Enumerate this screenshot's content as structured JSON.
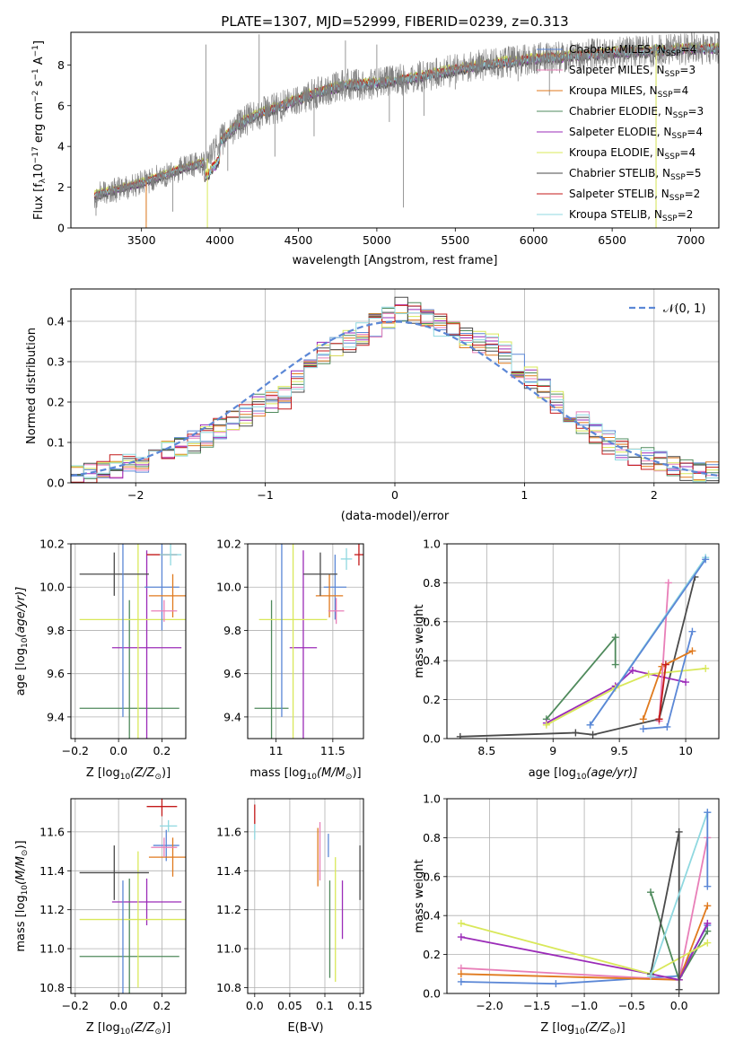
{
  "figure": {
    "title": "PLATE=1307, MJD=52999, FIBERID=0239, z=0.313"
  },
  "colors": {
    "Chabrier MILES": "#5b87d6",
    "Salpeter MILES": "#e87fb8",
    "Kroupa MILES": "#e07a1e",
    "Chabrier ELODIE": "#4f8a5c",
    "Salpeter ELODIE": "#9b2bb8",
    "Kroupa ELODIE": "#d9e85a",
    "Chabrier STELIB": "#4a4a4a",
    "Salpeter STELIB": "#c41a1a",
    "Kroupa STELIB": "#8fd8e0",
    "data": "#7f7f7f",
    "normal": "#5b87d6"
  },
  "chart_data": [
    {
      "id": "spectrum",
      "type": "line",
      "xlabel": "wavelength [Angstrom, rest frame]",
      "ylabel": "Flux [f",
      "ylabel_parts": [
        "Flux [f",
        "λ",
        "10",
        "−17",
        " erg cm",
        "−2",
        " s",
        "−1",
        " A",
        "−1",
        "]"
      ],
      "xlim": [
        3050,
        7180
      ],
      "ylim": [
        0,
        9.6
      ],
      "xticks": [
        3500,
        4000,
        4500,
        5000,
        5500,
        6000,
        6500,
        7000
      ],
      "yticks": [
        0,
        2,
        4,
        6,
        8
      ],
      "legend_position": "top-right",
      "legend": [
        {
          "model": "Chabrier MILES",
          "label": "Chabrier MILES, N",
          "sub": "SSP",
          "n": "=4"
        },
        {
          "model": "Salpeter MILES",
          "label": "Salpeter MILES, N",
          "sub": "SSP",
          "n": "=3"
        },
        {
          "model": "Kroupa MILES",
          "label": "Kroupa MILES, N",
          "sub": "SSP",
          "n": "=4"
        },
        {
          "model": "Chabrier ELODIE",
          "label": "Chabrier ELODIE, N",
          "sub": "SSP",
          "n": "=3"
        },
        {
          "model": "Salpeter ELODIE",
          "label": "Salpeter ELODIE, N",
          "sub": "SSP",
          "n": "=4"
        },
        {
          "model": "Kroupa ELODIE",
          "label": "Kroupa ELODIE, N",
          "sub": "SSP",
          "n": "=4"
        },
        {
          "model": "Chabrier STELIB",
          "label": "Chabrier STELIB, N",
          "sub": "SSP",
          "n": "=5"
        },
        {
          "model": "Salpeter STELIB",
          "label": "Salpeter STELIB, N",
          "sub": "SSP",
          "n": "=2"
        },
        {
          "model": "Kroupa STELIB",
          "label": "Kroupa STELIB, N",
          "sub": "SSP",
          "n": "=2"
        }
      ],
      "continuum": {
        "wavelength": [
          3200,
          3400,
          3500,
          3650,
          3750,
          3900,
          4000,
          4100,
          4250,
          4400,
          4600,
          4800,
          5000,
          5200,
          5400,
          5600,
          5800,
          6000,
          6200,
          6500,
          6800,
          7000
        ],
        "flux": [
          1.6,
          2.0,
          2.2,
          2.6,
          2.9,
          3.2,
          4.2,
          5.0,
          5.6,
          6.0,
          6.6,
          7.0,
          7.1,
          7.3,
          7.6,
          7.9,
          8.1,
          8.3,
          8.4,
          8.6,
          8.7,
          8.8
        ]
      },
      "model_offsets": [
        0.0,
        0.05,
        -0.05,
        0.1,
        -0.1,
        0.15,
        -0.15,
        0.08,
        -0.02
      ],
      "data_spikes": {
        "wavelength": [
          3210,
          3530,
          3700,
          3910,
          4050,
          4250,
          4350,
          4600,
          4800,
          5000,
          5080,
          5170,
          5300,
          5500,
          5900,
          6100,
          6300,
          6550,
          6780,
          6850
        ],
        "flux": [
          0.6,
          0.3,
          0.8,
          9.0,
          2.8,
          9.5,
          3.5,
          4.5,
          9.2,
          9.0,
          5.2,
          1.0,
          5.5,
          6.8,
          7.2,
          6.5,
          7.8,
          7.5,
          0.0,
          9.3
        ]
      },
      "notches": [
        {
          "model": "Kroupa ELODIE",
          "wavelength": 3920,
          "flux": 0.0
        },
        {
          "model": "Kroupa MILES",
          "wavelength": 3530,
          "flux": 0.0
        },
        {
          "model": "Kroupa ELODIE",
          "wavelength": 6780,
          "flux": 0.0
        }
      ]
    },
    {
      "id": "residuals",
      "type": "line",
      "xlabel": "(data-model)/error",
      "ylabel": "Normed distribution",
      "xlim": [
        -2.5,
        2.5
      ],
      "ylim": [
        0,
        0.48
      ],
      "xticks": [
        -2,
        -1,
        0,
        1,
        2
      ],
      "xticklabels": [
        "−2",
        "−1",
        "0",
        "1",
        "2"
      ],
      "yticks": [
        0.0,
        0.1,
        0.2,
        0.3,
        0.4
      ],
      "grid": true,
      "legend_position": "top-right",
      "legend": [
        {
          "label": "𝒩(0, 1)",
          "style": "dashed"
        }
      ],
      "normal": {
        "mean": 0,
        "sigma": 1
      },
      "histogram": {
        "bin_start": -2.5,
        "bin_width": 0.1,
        "base": [
          0.02,
          0.025,
          0.03,
          0.04,
          0.05,
          0.055,
          0.065,
          0.08,
          0.09,
          0.1,
          0.115,
          0.13,
          0.15,
          0.17,
          0.19,
          0.2,
          0.21,
          0.25,
          0.29,
          0.32,
          0.34,
          0.35,
          0.37,
          0.39,
          0.41,
          0.43,
          0.42,
          0.4,
          0.39,
          0.37,
          0.36,
          0.35,
          0.34,
          0.32,
          0.29,
          0.26,
          0.23,
          0.2,
          0.17,
          0.15,
          0.12,
          0.1,
          0.085,
          0.07,
          0.06,
          0.05,
          0.045,
          0.035,
          0.03,
          0.025
        ]
      }
    },
    {
      "id": "age_vs_Z",
      "type": "scatter",
      "xlabel": "Z [log",
      "xlabel_parts": [
        "Z [log",
        "10",
        "(Z/Z",
        "⊙",
        ")]"
      ],
      "ylabel_parts": [
        "age  [log",
        "10",
        "(age/yr)]"
      ],
      "xlim": [
        -0.22,
        0.31
      ],
      "ylim": [
        9.3,
        10.2
      ],
      "xticks": [
        -0.2,
        0.0,
        0.2
      ],
      "xticklabels": [
        "−0.2",
        "0.0",
        "0.2"
      ],
      "yticks": [
        9.4,
        9.6,
        9.8,
        10.0,
        10.2
      ],
      "grid": true,
      "points": [
        {
          "model": "Chabrier ELODIE",
          "x": 0.05,
          "y": 9.44,
          "xerr": 0.23,
          "yerr": 0.5
        },
        {
          "model": "Salpeter ELODIE",
          "x": 0.13,
          "y": 9.72,
          "xerr": 0.16,
          "yerr": 0.45
        },
        {
          "model": "Kroupa ELODIE",
          "x": 0.09,
          "y": 9.85,
          "xerr": 0.27,
          "yerr": 0.6
        },
        {
          "model": "Chabrier MILES",
          "x": 0.2,
          "y": 10.0,
          "xerr": 0.08,
          "yerr": 0.2
        },
        {
          "model": "Kroupa MILES",
          "x": 0.25,
          "y": 9.96,
          "xerr": 0.11,
          "yerr": 0.1
        },
        {
          "model": "Salpeter MILES",
          "x": 0.21,
          "y": 9.89,
          "xerr": 0.06,
          "yerr": 0.05
        },
        {
          "model": "Chabrier STELIB",
          "x": -0.02,
          "y": 10.06,
          "xerr": 0.16,
          "yerr": 0.1
        },
        {
          "model": "Salpeter STELIB",
          "x": 0.2,
          "y": 10.15,
          "xerr": 0.07,
          "yerr": 0.0
        },
        {
          "model": "Kroupa STELIB",
          "x": 0.24,
          "y": 10.15,
          "xerr": 0.05,
          "yerr": 0.05
        },
        {
          "model": "Chabrier MILES",
          "x": 0.02,
          "y": 9.8,
          "xerr": 0.0,
          "yerr": 0.4
        }
      ]
    },
    {
      "id": "age_vs_mass",
      "type": "scatter",
      "xlabel_parts": [
        "mass [log",
        "10",
        "(M/M",
        "⊙",
        ")]"
      ],
      "xlim": [
        10.75,
        11.77
      ],
      "ylim": [
        9.3,
        10.2
      ],
      "xticks": [
        11.0,
        11.5
      ],
      "yticks": [
        9.4,
        9.6,
        9.8,
        10.0,
        10.2
      ],
      "grid": true,
      "points": [
        {
          "model": "Chabrier ELODIE",
          "x": 10.96,
          "y": 9.44,
          "xerr": 0.15,
          "yerr": 0.5
        },
        {
          "model": "Salpeter ELODIE",
          "x": 11.24,
          "y": 9.72,
          "xerr": 0.12,
          "yerr": 0.45
        },
        {
          "model": "Kroupa ELODIE",
          "x": 11.15,
          "y": 9.85,
          "xerr": 0.3,
          "yerr": 0.6
        },
        {
          "model": "Chabrier MILES",
          "x": 11.05,
          "y": 9.8,
          "xerr": 0.0,
          "yerr": 0.4
        },
        {
          "model": "Chabrier MILES",
          "x": 11.52,
          "y": 10.0,
          "xerr": 0.1,
          "yerr": 0.15
        },
        {
          "model": "Kroupa MILES",
          "x": 11.47,
          "y": 9.96,
          "xerr": 0.12,
          "yerr": 0.1
        },
        {
          "model": "Salpeter MILES",
          "x": 11.53,
          "y": 9.89,
          "xerr": 0.07,
          "yerr": 0.06
        },
        {
          "model": "Chabrier STELIB",
          "x": 11.39,
          "y": 10.06,
          "xerr": 0.15,
          "yerr": 0.1
        },
        {
          "model": "Salpeter STELIB",
          "x": 11.73,
          "y": 10.15,
          "xerr": 0.04,
          "yerr": 0.05
        },
        {
          "model": "Kroupa STELIB",
          "x": 11.62,
          "y": 10.13,
          "xerr": 0.05,
          "yerr": 0.05
        }
      ]
    },
    {
      "id": "weight_vs_age",
      "type": "line",
      "xlabel_parts": [
        "age  [log",
        "10",
        "(age/yr)]"
      ],
      "ylabel": "mass weight",
      "xlim": [
        8.2,
        10.25
      ],
      "ylim": [
        0,
        1.0
      ],
      "xticks": [
        8.5,
        9.0,
        9.5,
        10.0
      ],
      "yticks": [
        0.0,
        0.2,
        0.4,
        0.6,
        0.8,
        1.0
      ],
      "grid": true,
      "series": [
        {
          "model": "Chabrier STELIB",
          "x": [
            8.3,
            9.17,
            9.3,
            9.8,
            10.07
          ],
          "y": [
            0.01,
            0.03,
            0.02,
            0.1,
            0.83
          ]
        },
        {
          "model": "Chabrier ELODIE",
          "x": [
            8.95,
            9.47,
            9.47
          ],
          "y": [
            0.1,
            0.52,
            0.38
          ]
        },
        {
          "model": "Salpeter ELODIE",
          "x": [
            8.95,
            9.47,
            9.6,
            10.0
          ],
          "y": [
            0.08,
            0.27,
            0.35,
            0.29
          ]
        },
        {
          "model": "Kroupa ELODIE",
          "x": [
            8.95,
            9.47,
            9.72,
            10.15
          ],
          "y": [
            0.07,
            0.26,
            0.33,
            0.36
          ]
        },
        {
          "model": "Chabrier MILES",
          "x": [
            9.68,
            9.86,
            10.05
          ],
          "y": [
            0.05,
            0.06,
            0.55
          ]
        },
        {
          "model": "Kroupa MILES",
          "x": [
            9.68,
            9.82,
            10.05
          ],
          "y": [
            0.1,
            0.37,
            0.45
          ]
        },
        {
          "model": "Salpeter MILES",
          "x": [
            9.8,
            9.87
          ],
          "y": [
            0.09,
            0.8
          ]
        },
        {
          "model": "Kroupa STELIB",
          "x": [
            9.28,
            10.15
          ],
          "y": [
            0.07,
            0.93
          ]
        },
        {
          "model": "Chabrier MILES",
          "x": [
            9.28,
            10.15
          ],
          "y": [
            0.07,
            0.92
          ]
        },
        {
          "model": "Salpeter STELIB",
          "x": [
            9.8,
            9.85
          ],
          "y": [
            0.1,
            0.38
          ]
        }
      ]
    },
    {
      "id": "mass_vs_Z",
      "type": "scatter",
      "xlabel_parts": [
        "Z [log",
        "10",
        "(Z/Z",
        "⊙",
        ")]"
      ],
      "ylabel_parts": [
        "mass [log",
        "10",
        "(M/M",
        "⊙",
        ")]"
      ],
      "xlim": [
        -0.22,
        0.31
      ],
      "ylim": [
        10.77,
        11.77
      ],
      "xticks": [
        -0.2,
        0.0,
        0.2
      ],
      "xticklabels": [
        "−0.2",
        "0.0",
        "0.2"
      ],
      "yticks": [
        10.8,
        11.0,
        11.2,
        11.4,
        11.6
      ],
      "grid": true,
      "points": [
        {
          "model": "Chabrier ELODIE",
          "x": 0.05,
          "y": 10.96,
          "xerr": 0.23,
          "yerr": 0.4
        },
        {
          "model": "Salpeter ELODIE",
          "x": 0.13,
          "y": 11.24,
          "xerr": 0.16,
          "yerr": 0.12
        },
        {
          "model": "Kroupa ELODIE",
          "x": 0.09,
          "y": 11.15,
          "xerr": 0.27,
          "yerr": 0.35
        },
        {
          "model": "Chabrier MILES",
          "x": 0.02,
          "y": 11.05,
          "xerr": 0.0,
          "yerr": 0.3
        },
        {
          "model": "Chabrier MILES",
          "x": 0.22,
          "y": 11.53,
          "xerr": 0.06,
          "yerr": 0.08
        },
        {
          "model": "Kroupa MILES",
          "x": 0.25,
          "y": 11.47,
          "xerr": 0.11,
          "yerr": 0.1
        },
        {
          "model": "Salpeter MILES",
          "x": 0.21,
          "y": 11.52,
          "xerr": 0.06,
          "yerr": 0.05
        },
        {
          "model": "Chabrier STELIB",
          "x": -0.02,
          "y": 11.39,
          "xerr": 0.16,
          "yerr": 0.14
        },
        {
          "model": "Salpeter STELIB",
          "x": 0.2,
          "y": 11.73,
          "xerr": 0.07,
          "yerr": 0.05
        },
        {
          "model": "Kroupa STELIB",
          "x": 0.23,
          "y": 11.63,
          "xerr": 0.04,
          "yerr": 0.03
        }
      ]
    },
    {
      "id": "mass_vs_ebv",
      "type": "scatter",
      "xlabel": "E(B-V)",
      "xlim": [
        -0.01,
        0.155
      ],
      "ylim": [
        10.77,
        11.77
      ],
      "xticks": [
        0.0,
        0.05,
        0.1,
        0.15
      ],
      "xticklabels": [
        "0.0",
        "0.05",
        "0.1",
        "0.15"
      ],
      "yticks": [
        10.8,
        11.0,
        11.2,
        11.4,
        11.6
      ],
      "grid": true,
      "points": [
        {
          "model": "Salpeter STELIB",
          "x": 0.0,
          "y": 11.69,
          "yerr": 0.05
        },
        {
          "model": "Kroupa STELIB",
          "x": 0.0,
          "y": 11.6,
          "yerr": 0.04
        },
        {
          "model": "Kroupa MILES",
          "x": 0.09,
          "y": 11.47,
          "yerr": 0.15
        },
        {
          "model": "Salpeter MILES",
          "x": 0.093,
          "y": 11.5,
          "yerr": 0.15
        },
        {
          "model": "Chabrier MILES",
          "x": 0.105,
          "y": 11.53,
          "yerr": 0.06
        },
        {
          "model": "Chabrier ELODIE",
          "x": 0.107,
          "y": 11.1,
          "yerr": 0.25
        },
        {
          "model": "Kroupa ELODIE",
          "x": 0.115,
          "y": 11.15,
          "yerr": 0.32
        },
        {
          "model": "Salpeter ELODIE",
          "x": 0.125,
          "y": 11.2,
          "yerr": 0.15
        },
        {
          "model": "Chabrier STELIB",
          "x": 0.15,
          "y": 11.39,
          "yerr": 0.14
        }
      ]
    },
    {
      "id": "weight_vs_Z",
      "type": "line",
      "xlabel_parts": [
        "Z [log",
        "10",
        "(Z/Z",
        "⊙",
        ")]"
      ],
      "ylabel": "mass weight",
      "xlim": [
        -2.45,
        0.42
      ],
      "ylim": [
        0,
        1.0
      ],
      "xticks": [
        -2.0,
        -1.5,
        -1.0,
        -0.5,
        0.0
      ],
      "xticklabels": [
        "−2.0",
        "−1.5",
        "−1.0",
        "−0.5",
        "0.0"
      ],
      "yticks": [
        0.0,
        0.2,
        0.4,
        0.6,
        0.8,
        1.0
      ],
      "grid": true,
      "series": [
        {
          "model": "Chabrier MILES",
          "x": [
            -2.3,
            -1.3,
            0.0,
            0.3
          ],
          "y": [
            0.06,
            0.05,
            0.09,
            0.35
          ]
        },
        {
          "model": "Salpeter MILES",
          "x": [
            -2.3,
            0.0,
            0.3
          ],
          "y": [
            0.13,
            0.07,
            0.8
          ]
        },
        {
          "model": "Kroupa MILES",
          "x": [
            -2.3,
            0.0,
            0.3
          ],
          "y": [
            0.1,
            0.07,
            0.45
          ]
        },
        {
          "model": "Chabrier ELODIE",
          "x": [
            -0.3,
            0.0,
            0.3
          ],
          "y": [
            0.52,
            0.07,
            0.32
          ]
        },
        {
          "model": "Salpeter ELODIE",
          "x": [
            -2.3,
            -0.3,
            0.0,
            0.3
          ],
          "y": [
            0.29,
            0.1,
            0.07,
            0.36
          ]
        },
        {
          "model": "Kroupa ELODIE",
          "x": [
            -2.3,
            -0.3,
            0.3
          ],
          "y": [
            0.36,
            0.1,
            0.26
          ]
        },
        {
          "model": "Chabrier STELIB",
          "x": [
            -0.3,
            0.0,
            0.0
          ],
          "y": [
            0.1,
            0.83,
            0.02
          ]
        },
        {
          "model": "Kroupa STELIB",
          "x": [
            -0.3,
            0.3
          ],
          "y": [
            0.09,
            0.93
          ]
        },
        {
          "model": "Chabrier MILES",
          "x": [
            0.3,
            0.3
          ],
          "y": [
            0.55,
            0.93
          ]
        }
      ]
    }
  ]
}
